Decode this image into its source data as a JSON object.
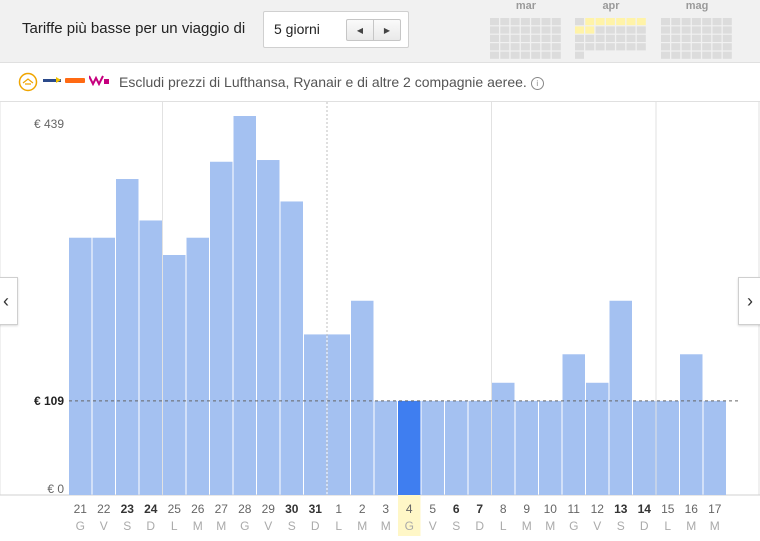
{
  "header": {
    "label": "Tariffe più basse per un viaggio di",
    "duration_value": "5 giorni",
    "months": [
      "mar",
      "apr",
      "mag"
    ]
  },
  "filter": {
    "text": "Escludi prezzi di Lufthansa, Ryanair e di altre 2 compagnie aeree.",
    "info_icon": "info-icon"
  },
  "icons": {
    "prev": "chevron-left-icon",
    "next": "chevron-right-icon"
  },
  "colors": {
    "bar": "#a4c1f1",
    "bar_selected": "#3f7ef0",
    "selected_highlight": "#fff7c7",
    "axis_text": "#666666",
    "weekday_text": "#aaaaaa"
  },
  "chart_data": {
    "type": "bar",
    "y_tick_labels": [
      "€ 439",
      "€ 109",
      "€ 0"
    ],
    "y_ticks": [
      439,
      109,
      0
    ],
    "ylim": [
      0,
      439
    ],
    "reference_value": 109,
    "reference_label": "€ 109",
    "grid": true,
    "categories": [
      "21",
      "22",
      "23",
      "24",
      "25",
      "26",
      "27",
      "28",
      "29",
      "30",
      "31",
      "1",
      "2",
      "3",
      "4",
      "5",
      "6",
      "7",
      "8",
      "9",
      "10",
      "11",
      "12",
      "13",
      "14",
      "15",
      "16",
      "17"
    ],
    "weekdays": [
      "G",
      "V",
      "S",
      "D",
      "L",
      "M",
      "M",
      "G",
      "V",
      "S",
      "D",
      "L",
      "M",
      "M",
      "G",
      "V",
      "S",
      "D",
      "L",
      "M",
      "M",
      "G",
      "V",
      "S",
      "D",
      "L",
      "M",
      "M"
    ],
    "bold_days": [
      "23",
      "24",
      "30",
      "31",
      "6",
      "7",
      "13",
      "14"
    ],
    "values": [
      298,
      298,
      366,
      318,
      278,
      298,
      386,
      439,
      388,
      340,
      186,
      186,
      225,
      109,
      109,
      109,
      109,
      109,
      130,
      109,
      109,
      163,
      130,
      225,
      109,
      109,
      163,
      109
    ],
    "selected": "4",
    "month_starts": [
      "1"
    ]
  }
}
